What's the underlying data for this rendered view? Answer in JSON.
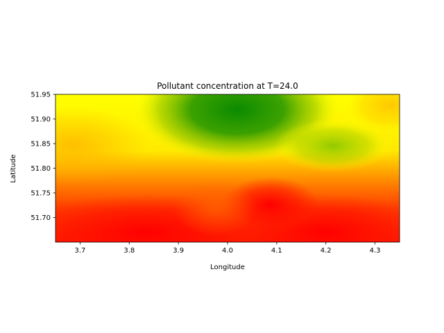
{
  "chart_data": {
    "type": "heatmap",
    "title": "Pollutant concentration at T=24.0",
    "xlabel": "Longitude",
    "ylabel": "Latitude",
    "xlim": [
      3.65,
      4.35
    ],
    "ylim": [
      51.65,
      51.95
    ],
    "xticks": [
      3.7,
      3.8,
      3.9,
      4.0,
      4.1,
      4.2,
      4.3
    ],
    "xtick_labels": [
      "3.7",
      "3.8",
      "3.9",
      "4.0",
      "4.1",
      "4.2",
      "4.3"
    ],
    "yticks": [
      51.7,
      51.75,
      51.8,
      51.85,
      51.9,
      51.95
    ],
    "ytick_labels": [
      "51.70",
      "51.75",
      "51.80",
      "51.85",
      "51.90",
      "51.95"
    ],
    "grid": false,
    "colormap": [
      "#ff0000",
      "#ffff00",
      "#008000"
    ],
    "hotspots": [
      {
        "lon": 4.02,
        "lat": 51.925,
        "level": "high"
      },
      {
        "lon": 4.21,
        "lat": 51.84,
        "level": "medium"
      },
      {
        "lon": 4.21,
        "lat": 51.67,
        "level": "low"
      },
      {
        "lon": 3.78,
        "lat": 51.67,
        "level": "low"
      },
      {
        "lon": 4.3,
        "lat": 51.93,
        "level": "low-medium"
      }
    ]
  }
}
